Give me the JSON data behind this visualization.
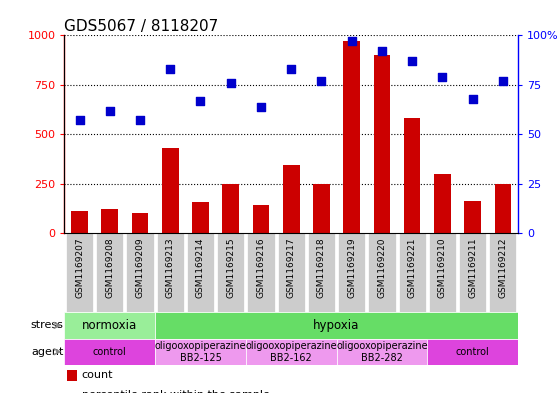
{
  "title": "GDS5067 / 8118207",
  "samples": [
    "GSM1169207",
    "GSM1169208",
    "GSM1169209",
    "GSM1169213",
    "GSM1169214",
    "GSM1169215",
    "GSM1169216",
    "GSM1169217",
    "GSM1169218",
    "GSM1169219",
    "GSM1169220",
    "GSM1169221",
    "GSM1169210",
    "GSM1169211",
    "GSM1169212"
  ],
  "counts": [
    110,
    120,
    100,
    430,
    155,
    248,
    140,
    345,
    248,
    970,
    900,
    580,
    300,
    160,
    248
  ],
  "percentiles": [
    57,
    62,
    57,
    83,
    67,
    76,
    64,
    83,
    77,
    97,
    92,
    87,
    79,
    68,
    77
  ],
  "bar_color": "#cc0000",
  "dot_color": "#0000cc",
  "ylim_left": [
    0,
    1000
  ],
  "ylim_right": [
    0,
    100
  ],
  "yticks_left": [
    0,
    250,
    500,
    750,
    1000
  ],
  "yticks_right": [
    0,
    25,
    50,
    75,
    100
  ],
  "stress_segments": [
    {
      "label": "normoxia",
      "start": 0,
      "end": 3,
      "color": "#99ee99"
    },
    {
      "label": "hypoxia",
      "start": 3,
      "end": 15,
      "color": "#66dd66"
    }
  ],
  "agent_segments": [
    {
      "label": "control",
      "start": 0,
      "end": 3,
      "color": "#dd44dd"
    },
    {
      "label": "oligooxopiperazine\nBB2-125",
      "start": 3,
      "end": 6,
      "color": "#ee99ee"
    },
    {
      "label": "oligooxopiperazine\nBB2-162",
      "start": 6,
      "end": 9,
      "color": "#ee99ee"
    },
    {
      "label": "oligooxopiperazine\nBB2-282",
      "start": 9,
      "end": 12,
      "color": "#ee99ee"
    },
    {
      "label": "control",
      "start": 12,
      "end": 15,
      "color": "#dd44dd"
    }
  ],
  "bg_color": "#ffffff",
  "tick_bg_color": "#cccccc",
  "title_fontsize": 11,
  "bar_fontsize": 6.5,
  "ann_fontsize": 8,
  "agent_fontsize": 7
}
